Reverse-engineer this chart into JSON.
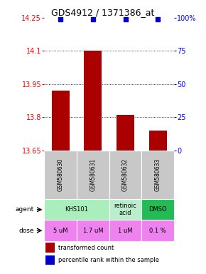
{
  "title": "GDS4912 / 1371386_at",
  "samples": [
    "GSM580630",
    "GSM580631",
    "GSM580632",
    "GSM580633"
  ],
  "bar_values": [
    13.92,
    14.1,
    13.81,
    13.74
  ],
  "percentile_values": [
    99,
    99,
    99,
    99
  ],
  "ylim": [
    13.65,
    14.25
  ],
  "y_ticks": [
    13.65,
    13.8,
    13.95,
    14.1,
    14.25
  ],
  "y_right_ticks": [
    0,
    25,
    50,
    75,
    100
  ],
  "bar_color": "#AA0000",
  "percentile_color": "#0000CC",
  "bar_width": 0.55,
  "agent_groups": [
    {
      "label": "KHS101",
      "start": 0,
      "end": 2,
      "color": "#AAEEBB"
    },
    {
      "label": "retinoic\nacid",
      "start": 2,
      "end": 3,
      "color": "#BBEECC"
    },
    {
      "label": "DMSO",
      "start": 3,
      "end": 4,
      "color": "#22BB55"
    }
  ],
  "dose_labels": [
    "5 uM",
    "1.7 uM",
    "1 uM",
    "0.1 %"
  ],
  "dose_color": "#EE82EE",
  "sample_bg_color": "#C8C8C8",
  "legend_red_label": "transformed count",
  "legend_blue_label": "percentile rank within the sample"
}
